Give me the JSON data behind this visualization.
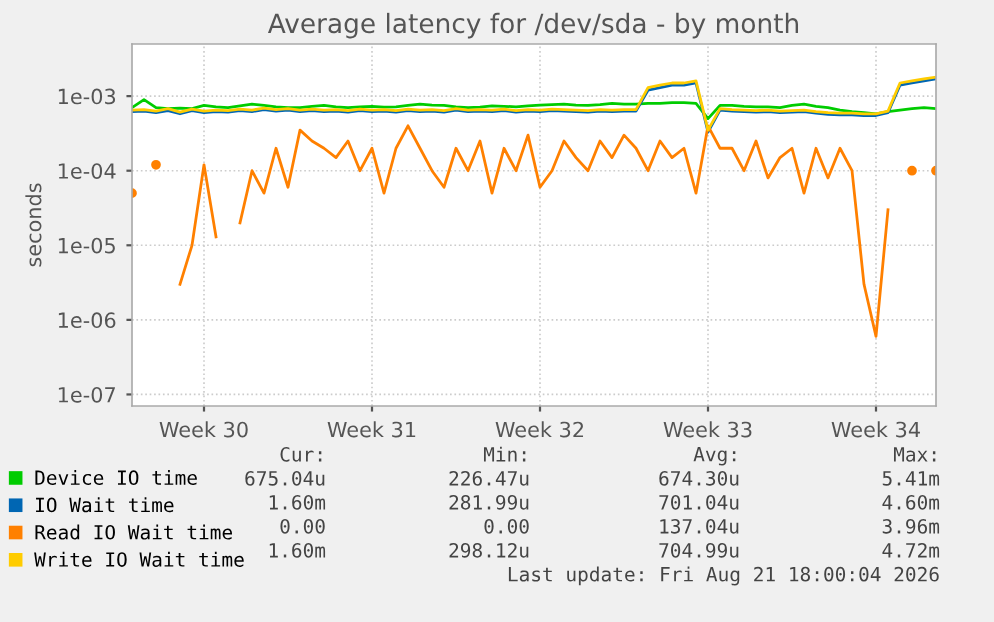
{
  "chart_data": {
    "type": "line",
    "title": "Average latency for /dev/sda - by month",
    "ylabel": "seconds",
    "log": "y",
    "grid": true,
    "legend": "bottom",
    "line_style": "solid",
    "marker": "none",
    "categories": [
      null,
      null,
      null,
      null,
      null,
      null,
      "Week 30",
      null,
      null,
      null,
      null,
      null,
      null,
      null,
      null,
      null,
      null,
      null,
      null,
      null,
      "Week 31",
      null,
      null,
      null,
      null,
      null,
      null,
      null,
      null,
      null,
      null,
      null,
      null,
      null,
      "Week 32",
      null,
      null,
      null,
      null,
      null,
      null,
      null,
      null,
      null,
      null,
      null,
      null,
      null,
      "Week 33",
      null,
      null,
      null,
      null,
      null,
      null,
      null,
      null,
      null,
      null,
      null,
      null,
      null,
      "Week 34",
      null,
      null,
      null,
      null,
      null
    ],
    "ylim": [
      7e-08,
      0.005
    ],
    "yticks": [
      {
        "value": 1e-07,
        "label": "1e-07"
      },
      {
        "value": 1e-06,
        "label": "1e-06"
      },
      {
        "value": 1e-05,
        "label": "1e-05"
      },
      {
        "value": 0.0001,
        "label": "1e-04"
      },
      {
        "value": 0.001,
        "label": "1e-03"
      }
    ],
    "series": [
      {
        "name": "Device IO time",
        "color": "#00cc00",
        "values": [
          0.0007,
          0.0009,
          0.0007,
          0.00068,
          0.00069,
          0.00068,
          0.00075,
          0.00072,
          0.0007,
          0.00074,
          0.00078,
          0.00075,
          0.00072,
          0.0007,
          0.0007,
          0.00073,
          0.00075,
          0.00072,
          0.0007,
          0.00072,
          0.00073,
          0.00071,
          0.00072,
          0.00075,
          0.00078,
          0.00076,
          0.00075,
          0.00072,
          0.0007,
          0.00071,
          0.00074,
          0.00073,
          0.00072,
          0.00074,
          0.00076,
          0.00077,
          0.00078,
          0.00076,
          0.00075,
          0.00077,
          0.0008,
          0.00078,
          0.00078,
          0.0008,
          0.0008,
          0.00082,
          0.00082,
          0.0008,
          0.0005,
          0.00075,
          0.00075,
          0.00073,
          0.00072,
          0.00072,
          0.0007,
          0.00075,
          0.00078,
          0.00073,
          0.0007,
          0.00065,
          0.00062,
          0.0006,
          0.00058,
          0.00062,
          0.00065,
          0.00068,
          0.0007,
          0.00068
        ]
      },
      {
        "name": "IO Wait time",
        "color": "#0066b3",
        "values": [
          0.00062,
          0.00063,
          0.0006,
          0.00064,
          0.00058,
          0.00064,
          0.0006,
          0.00062,
          0.00061,
          0.00064,
          0.00062,
          0.00066,
          0.00063,
          0.00065,
          0.00062,
          0.00064,
          0.00062,
          0.00063,
          0.00061,
          0.00064,
          0.00062,
          0.00063,
          0.00061,
          0.00064,
          0.00062,
          0.00063,
          0.00061,
          0.00065,
          0.00062,
          0.00063,
          0.00062,
          0.00064,
          0.00061,
          0.00063,
          0.00062,
          0.00064,
          0.00063,
          0.00062,
          0.00061,
          0.00063,
          0.00062,
          0.00063,
          0.00063,
          0.0012,
          0.0013,
          0.0014,
          0.0014,
          0.0015,
          0.00033,
          0.00065,
          0.00063,
          0.00062,
          0.00061,
          0.00062,
          0.0006,
          0.00061,
          0.00062,
          0.00059,
          0.00057,
          0.00056,
          0.00056,
          0.00055,
          0.00055,
          0.0006,
          0.0014,
          0.0015,
          0.0016,
          0.0017
        ]
      },
      {
        "name": "Read IO Wait time",
        "color": "#ff8000",
        "values": [
          5e-05,
          null,
          0.00012,
          null,
          3e-06,
          1e-05,
          0.00012,
          1.3e-05,
          null,
          2e-05,
          0.0001,
          5e-05,
          0.0002,
          6e-05,
          0.00035,
          0.00025,
          0.0002,
          0.00015,
          0.00025,
          0.0001,
          0.0002,
          5e-05,
          0.0002,
          0.0004,
          0.0002,
          0.0001,
          6e-05,
          0.0002,
          0.0001,
          0.00025,
          5e-05,
          0.0002,
          0.0001,
          0.0003,
          6e-05,
          0.0001,
          0.00025,
          0.00015,
          0.0001,
          0.00025,
          0.00015,
          0.0003,
          0.0002,
          0.0001,
          0.00025,
          0.00015,
          0.0002,
          5e-05,
          0.0004,
          0.0002,
          0.0002,
          0.0001,
          0.00025,
          8e-05,
          0.00015,
          0.0002,
          5e-05,
          0.0002,
          8e-05,
          0.0002,
          0.0001,
          3e-06,
          6e-07,
          3e-05,
          null,
          0.0001,
          null,
          0.0001
        ]
      },
      {
        "name": "Write IO Wait time",
        "color": "#ffcc00",
        "values": [
          0.00065,
          0.00066,
          0.00063,
          0.00068,
          0.00061,
          0.00067,
          0.00063,
          0.00065,
          0.00064,
          0.00067,
          0.00065,
          0.00069,
          0.00066,
          0.00068,
          0.00065,
          0.00067,
          0.00065,
          0.00066,
          0.00064,
          0.00067,
          0.00065,
          0.00066,
          0.00064,
          0.00067,
          0.00065,
          0.00066,
          0.00064,
          0.00068,
          0.00065,
          0.00066,
          0.00065,
          0.00067,
          0.00064,
          0.00066,
          0.00065,
          0.00067,
          0.00066,
          0.00065,
          0.00064,
          0.00066,
          0.00065,
          0.00066,
          0.00066,
          0.0013,
          0.0014,
          0.0015,
          0.0015,
          0.0016,
          0.00035,
          0.00068,
          0.00066,
          0.00065,
          0.00064,
          0.00065,
          0.00063,
          0.00064,
          0.00065,
          0.00062,
          0.0006,
          0.00059,
          0.00059,
          0.00058,
          0.00058,
          0.00063,
          0.0015,
          0.0016,
          0.0017,
          0.0018
        ]
      }
    ],
    "annotations": [
      "Cur:",
      "Min:",
      "Avg:",
      "Max:",
      "675.04u",
      "226.47u",
      "674.30u",
      "5.41m",
      "1.60m",
      "281.99u",
      "701.04u",
      "4.60m",
      "0.00",
      "0.00",
      "137.04u",
      "3.96m",
      "1.60m",
      "298.12u",
      "704.99u",
      "4.72m",
      "Last update: Fri Aug 21 18:00:04 2026"
    ]
  }
}
